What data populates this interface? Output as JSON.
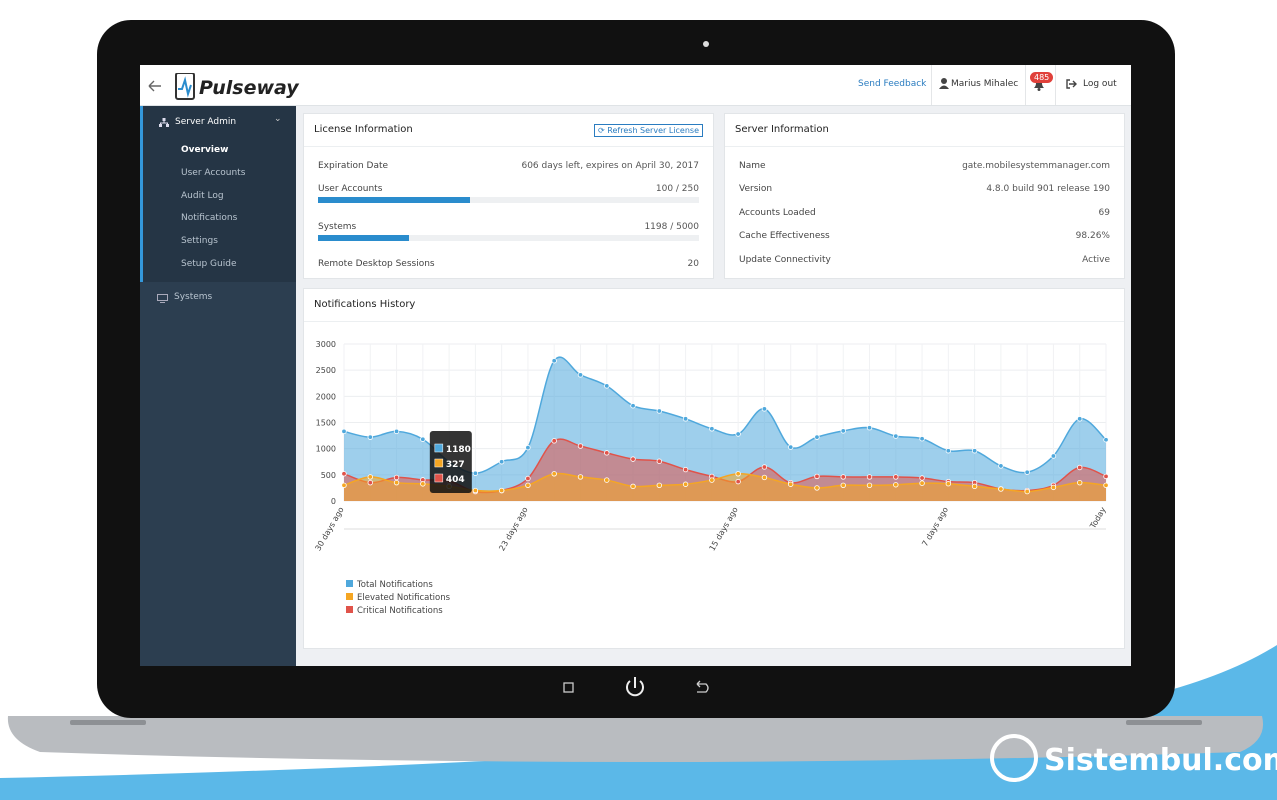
{
  "header": {
    "logo": "Pulseway",
    "send_feedback": "Send Feedback",
    "user": "Marius Mihalec",
    "badge": "485",
    "logout": "Log out"
  },
  "sidebar": {
    "section": "Server Admin",
    "items": [
      "Overview",
      "User Accounts",
      "Audit Log",
      "Notifications",
      "Settings",
      "Setup Guide"
    ],
    "systems": "Systems"
  },
  "license": {
    "title": "License Information",
    "button": "Refresh Server License",
    "rows": [
      {
        "label": "Expiration Date",
        "value": "606 days left, expires on April 30, 2017"
      },
      {
        "label": "User Accounts",
        "value": "100 / 250"
      },
      {
        "label": "Systems",
        "value": "1198 / 5000"
      },
      {
        "label": "Remote Desktop Sessions",
        "value": "20"
      }
    ]
  },
  "server": {
    "title": "Server Information",
    "rows": [
      {
        "label": "Name",
        "value": "gate.mobilesystemmanager.com"
      },
      {
        "label": "Version",
        "value": "4.8.0 build 901 release 190"
      },
      {
        "label": "Accounts Loaded",
        "value": "69"
      },
      {
        "label": "Cache Effectiveness",
        "value": "98.26%"
      },
      {
        "label": "Update Connectivity",
        "value": "Active"
      }
    ]
  },
  "chart_data": {
    "type": "area",
    "title": "Notifications History",
    "categories": [
      "30 days ago",
      null,
      null,
      null,
      null,
      null,
      null,
      "23 days ago",
      null,
      null,
      null,
      null,
      null,
      null,
      null,
      "15 days ago",
      null,
      null,
      null,
      null,
      null,
      null,
      null,
      "7 days ago",
      null,
      null,
      null,
      null,
      null,
      "Today"
    ],
    "series": [
      {
        "name": "Total Notifications",
        "color": "#4fa8dc",
        "values": [
          1330,
          1220,
          1330,
          1180,
          750,
          530,
          750,
          1020,
          2680,
          2410,
          2200,
          1820,
          1720,
          1570,
          1380,
          1280,
          1760,
          1030,
          1220,
          1340,
          1400,
          1240,
          1190,
          960,
          960,
          670,
          550,
          860,
          1570,
          1170
        ]
      },
      {
        "name": "Elevated Notifications",
        "color": "#f5a623",
        "values": [
          300,
          460,
          350,
          327,
          280,
          200,
          200,
          300,
          520,
          460,
          400,
          280,
          300,
          320,
          400,
          520,
          450,
          320,
          250,
          300,
          300,
          310,
          340,
          330,
          280,
          230,
          180,
          260,
          350,
          300
        ]
      },
      {
        "name": "Critical Notifications",
        "color": "#e0534a",
        "values": [
          520,
          350,
          450,
          404,
          380,
          180,
          200,
          430,
          1150,
          1050,
          920,
          800,
          760,
          600,
          470,
          370,
          650,
          350,
          470,
          460,
          460,
          460,
          440,
          370,
          350,
          230,
          200,
          300,
          640,
          470
        ]
      }
    ],
    "ylim": [
      0,
      3000
    ],
    "yticks": [
      0,
      500,
      1000,
      1500,
      2000,
      2500,
      3000
    ],
    "grid": true,
    "tooltip_index": 3
  },
  "watermark": "Sistembul.com"
}
